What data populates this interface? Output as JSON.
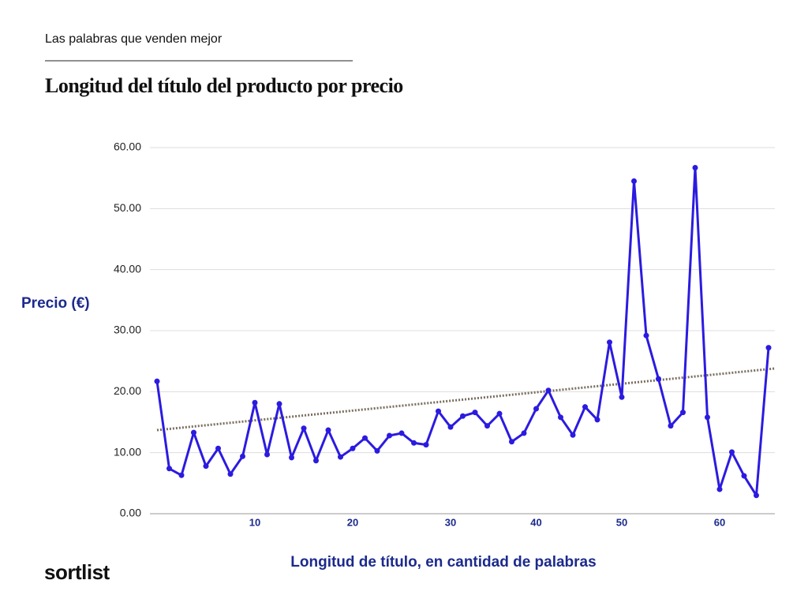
{
  "header": {
    "kicker": "Las palabras que venden mejor",
    "logo": "sortlist"
  },
  "chart_data": {
    "type": "line",
    "title": "Longitud del título del producto por precio",
    "y_label": "Precio (€)",
    "x_label": "Longitud de título, en cantidad de palabras",
    "categories": [
      null,
      null,
      null,
      null,
      null,
      null,
      null,
      null,
      "10",
      null,
      null,
      null,
      null,
      null,
      null,
      null,
      "20",
      null,
      null,
      null,
      null,
      null,
      null,
      null,
      "30",
      null,
      null,
      null,
      null,
      null,
      null,
      "40",
      null,
      null,
      null,
      null,
      null,
      null,
      "50",
      null,
      null,
      null,
      null,
      null,
      null,
      null,
      "60",
      null,
      null,
      null,
      null
    ],
    "series": [
      {
        "color": "#2b1be0",
        "values": [
          21.7,
          7.4,
          6.3,
          13.3,
          7.8,
          10.7,
          6.5,
          9.4,
          18.2,
          9.7,
          18.0,
          9.2,
          14.0,
          8.7,
          13.7,
          9.3,
          10.7,
          12.4,
          10.3,
          12.8,
          13.2,
          11.6,
          11.3,
          16.8,
          14.2,
          16.0,
          16.6,
          14.4,
          16.4,
          11.8,
          13.2,
          17.2,
          20.2,
          15.8,
          12.9,
          17.5,
          15.4,
          28.1,
          19.1,
          54.5,
          29.2,
          22.1,
          14.4,
          16.6,
          56.7,
          15.8,
          4.0,
          10.1,
          6.2,
          3.0,
          27.2
        ]
      }
    ],
    "trendline": {
      "color": "#7a6e5e",
      "start": 13.7,
      "end": 23.8
    },
    "ylim": [
      0,
      60
    ],
    "yticks": [
      {
        "value": 0,
        "label": "0.00"
      },
      {
        "value": 10,
        "label": "10.00"
      },
      {
        "value": 20,
        "label": "20.00"
      },
      {
        "value": 30,
        "label": "30.00"
      },
      {
        "value": 40,
        "label": "40.00"
      },
      {
        "value": 50,
        "label": "50.00"
      },
      {
        "value": 60,
        "label": "60.00"
      }
    ],
    "grid": true
  }
}
